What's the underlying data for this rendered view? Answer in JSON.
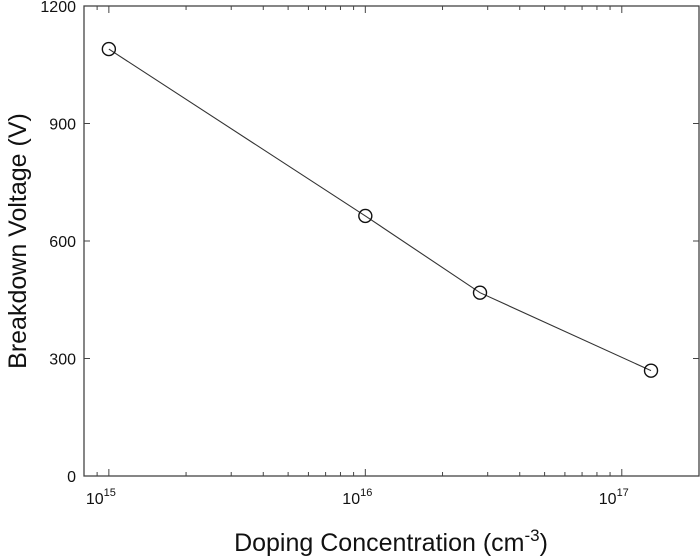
{
  "chart_data": {
    "type": "line",
    "title": "",
    "xlabel": "Doping Concentration (cm^-3)",
    "xlabel_main": "Doping Concentration (cm",
    "xlabel_sup": "-3",
    "xlabel_close": ")",
    "ylabel": "Breakdown Voltage (V)",
    "xscale": "log",
    "xlim": [
      800000000000000.0,
      2e+17
    ],
    "ylim": [
      0,
      1200
    ],
    "x_ticks": [
      1000000000000000.0,
      1e+16,
      1e+17
    ],
    "x_tick_labels": [
      {
        "base": "10",
        "exp": "15"
      },
      {
        "base": "10",
        "exp": "16"
      },
      {
        "base": "10",
        "exp": "17"
      }
    ],
    "y_ticks": [
      0,
      300,
      600,
      900,
      1200
    ],
    "y_tick_labels": [
      "0",
      "300",
      "600",
      "900",
      "1200"
    ],
    "grid": false,
    "legend": null,
    "marker": "open-circle",
    "line_color": "#333333",
    "series": [
      {
        "name": "Breakdown Voltage",
        "x": [
          1000000000000000.0,
          1e+16,
          2.8e+16,
          1.3e+17
        ],
        "y": [
          1090,
          664,
          468,
          269
        ]
      }
    ]
  }
}
